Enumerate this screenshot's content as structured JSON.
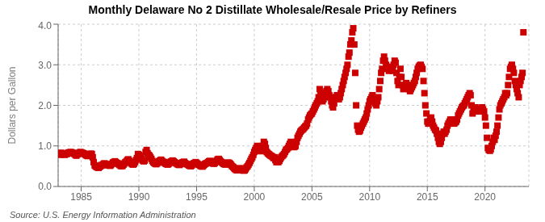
{
  "chart_data": {
    "type": "scatter",
    "title": "Monthly Delaware No 2 Distillate Wholesale/Resale Price by Refiners",
    "y_label": "Dollars per Gallon",
    "annotations": [
      "Source: U.S. Energy Information Administration"
    ],
    "color": "#cc0000",
    "marker": "square",
    "grid": true,
    "xlim": [
      1983.0,
      2023.8
    ],
    "xticks": [
      1985,
      1990,
      1995,
      2000,
      2005,
      2010,
      2015,
      2020
    ],
    "ylim": [
      0.0,
      4.0
    ],
    "yticks": [
      {
        "value": 0.0,
        "label": "0.0"
      },
      {
        "value": 1.0,
        "label": "1.0"
      },
      {
        "value": 2.0,
        "label": "2.0"
      },
      {
        "value": 3.0,
        "label": "3.0"
      },
      {
        "value": 4.0,
        "label": "4.0"
      }
    ],
    "x": [
      1983.0,
      1983.08,
      1983.17,
      1983.25,
      1983.33,
      1983.42,
      1983.5,
      1983.58,
      1983.67,
      1983.75,
      1983.83,
      1983.92,
      1984.0,
      1984.08,
      1984.17,
      1984.25,
      1984.33,
      1984.42,
      1984.5,
      1984.58,
      1984.67,
      1984.75,
      1984.83,
      1984.92,
      1985.0,
      1985.08,
      1985.17,
      1985.25,
      1985.33,
      1985.42,
      1985.5,
      1985.58,
      1985.67,
      1985.75,
      1985.83,
      1985.92,
      1986.0,
      1986.08,
      1986.17,
      1986.25,
      1986.33,
      1986.42,
      1986.5,
      1986.58,
      1986.67,
      1986.75,
      1986.83,
      1986.92,
      1987.0,
      1987.08,
      1987.17,
      1987.25,
      1987.33,
      1987.42,
      1987.5,
      1987.58,
      1987.67,
      1987.75,
      1987.83,
      1987.92,
      1988.0,
      1988.08,
      1988.17,
      1988.25,
      1988.33,
      1988.42,
      1988.5,
      1988.58,
      1988.67,
      1988.75,
      1988.83,
      1988.92,
      1989.0,
      1989.08,
      1989.17,
      1989.25,
      1989.33,
      1989.42,
      1989.5,
      1989.58,
      1989.67,
      1989.75,
      1989.83,
      1989.92,
      1990.0,
      1990.08,
      1990.17,
      1990.25,
      1990.33,
      1990.42,
      1990.5,
      1990.58,
      1990.67,
      1990.75,
      1990.83,
      1990.92,
      1991.0,
      1991.08,
      1991.17,
      1991.25,
      1991.33,
      1991.42,
      1991.5,
      1991.58,
      1991.67,
      1991.75,
      1991.83,
      1991.92,
      1992.0,
      1992.08,
      1992.17,
      1992.25,
      1992.33,
      1992.42,
      1992.5,
      1992.58,
      1992.67,
      1992.75,
      1992.83,
      1992.92,
      1993.0,
      1993.08,
      1993.17,
      1993.25,
      1993.33,
      1993.42,
      1993.5,
      1993.58,
      1993.67,
      1993.75,
      1993.83,
      1993.92,
      1994.0,
      1994.08,
      1994.17,
      1994.25,
      1994.33,
      1994.42,
      1994.5,
      1994.58,
      1994.67,
      1994.75,
      1994.83,
      1994.92,
      1995.0,
      1995.08,
      1995.17,
      1995.25,
      1995.33,
      1995.42,
      1995.5,
      1995.58,
      1995.67,
      1995.75,
      1995.83,
      1995.92,
      1996.0,
      1996.08,
      1996.17,
      1996.25,
      1996.33,
      1996.42,
      1996.5,
      1996.58,
      1996.67,
      1996.75,
      1996.83,
      1996.92,
      1997.0,
      1997.08,
      1997.17,
      1997.25,
      1997.33,
      1997.42,
      1997.5,
      1997.58,
      1997.67,
      1997.75,
      1997.83,
      1997.92,
      1998.0,
      1998.08,
      1998.17,
      1998.25,
      1998.33,
      1998.42,
      1998.5,
      1998.58,
      1998.67,
      1998.75,
      1998.83,
      1998.92,
      1999.0,
      1999.08,
      1999.17,
      1999.25,
      1999.33,
      1999.42,
      1999.5,
      1999.58,
      1999.67,
      1999.75,
      1999.83,
      1999.92,
      2000.0,
      2000.08,
      2000.17,
      2000.25,
      2000.33,
      2000.42,
      2000.5,
      2000.58,
      2000.67,
      2000.75,
      2000.83,
      2000.92,
      2001.0,
      2001.08,
      2001.17,
      2001.25,
      2001.33,
      2001.42,
      2001.5,
      2001.58,
      2001.67,
      2001.75,
      2001.83,
      2001.92,
      2002.0,
      2002.08,
      2002.17,
      2002.25,
      2002.33,
      2002.42,
      2002.5,
      2002.58,
      2002.67,
      2002.75,
      2002.83,
      2002.92,
      2003.0,
      2003.08,
      2003.17,
      2003.25,
      2003.33,
      2003.42,
      2003.5,
      2003.58,
      2003.67,
      2003.75,
      2003.83,
      2003.92,
      2004.0,
      2004.08,
      2004.17,
      2004.25,
      2004.33,
      2004.42,
      2004.5,
      2004.58,
      2004.67,
      2004.75,
      2004.83,
      2004.92,
      2005.0,
      2005.08,
      2005.17,
      2005.25,
      2005.33,
      2005.42,
      2005.5,
      2005.58,
      2005.67,
      2005.75,
      2005.83,
      2005.92,
      2006.0,
      2006.08,
      2006.17,
      2006.25,
      2006.33,
      2006.42,
      2006.5,
      2006.58,
      2006.67,
      2006.75,
      2006.83,
      2006.92,
      2007.0,
      2007.08,
      2007.17,
      2007.25,
      2007.33,
      2007.42,
      2007.5,
      2007.58,
      2007.67,
      2007.75,
      2007.83,
      2007.92,
      2008.0,
      2008.08,
      2008.17,
      2008.25,
      2008.33,
      2008.42,
      2008.5,
      2008.58,
      2008.67,
      2008.75,
      2008.83,
      2008.92,
      2009.0,
      2009.08,
      2009.17,
      2009.25,
      2009.33,
      2009.42,
      2009.5,
      2009.58,
      2009.67,
      2009.75,
      2009.83,
      2009.92,
      2010.0,
      2010.08,
      2010.17,
      2010.25,
      2010.33,
      2010.42,
      2010.5,
      2010.58,
      2010.67,
      2010.75,
      2010.83,
      2010.92,
      2011.0,
      2011.08,
      2011.17,
      2011.25,
      2011.33,
      2011.42,
      2011.5,
      2011.58,
      2011.67,
      2011.75,
      2011.83,
      2011.92,
      2012.0,
      2012.08,
      2012.17,
      2012.25,
      2012.33,
      2012.42,
      2012.5,
      2012.58,
      2012.67,
      2012.75,
      2012.83,
      2012.92,
      2013.0,
      2013.08,
      2013.17,
      2013.25,
      2013.33,
      2013.42,
      2013.5,
      2013.58,
      2013.67,
      2013.75,
      2013.83,
      2013.92,
      2014.0,
      2014.08,
      2014.17,
      2014.25,
      2014.33,
      2014.42,
      2014.5,
      2014.58,
      2014.67,
      2014.75,
      2014.83,
      2014.92,
      2015.0,
      2015.08,
      2015.17,
      2015.25,
      2015.33,
      2015.42,
      2015.5,
      2015.58,
      2015.67,
      2015.75,
      2015.83,
      2015.92,
      2016.0,
      2016.08,
      2016.17,
      2016.25,
      2016.33,
      2016.42,
      2016.5,
      2016.58,
      2016.67,
      2016.75,
      2016.83,
      2016.92,
      2017.0,
      2017.08,
      2017.17,
      2017.25,
      2017.33,
      2017.42,
      2017.5,
      2017.58,
      2017.67,
      2017.75,
      2017.83,
      2017.92,
      2018.0,
      2018.08,
      2018.17,
      2018.25,
      2018.33,
      2018.42,
      2018.5,
      2018.58,
      2018.67,
      2018.75,
      2018.83,
      2018.92,
      2019.0,
      2019.08,
      2019.17,
      2019.25,
      2019.33,
      2019.42,
      2019.5,
      2019.58,
      2019.67,
      2019.75,
      2019.83,
      2019.92,
      2020.0,
      2020.08,
      2020.17,
      2020.25,
      2020.33,
      2020.42,
      2020.5,
      2020.58,
      2020.67,
      2020.75,
      2020.83,
      2020.92,
      2021.0,
      2021.08,
      2021.17,
      2021.25,
      2021.33,
      2021.42,
      2021.5,
      2021.58,
      2021.67,
      2021.75,
      2021.83,
      2021.92,
      2022.0,
      2022.08,
      2022.17,
      2022.25,
      2022.33,
      2022.42,
      2022.5,
      2022.58,
      2022.67,
      2022.75,
      2022.83,
      2022.92,
      2023.0,
      2023.08,
      2023.17,
      2023.25,
      2023.33
    ],
    "values": [
      0.82,
      0.8,
      0.78,
      0.83,
      0.82,
      0.8,
      0.79,
      0.78,
      0.81,
      0.8,
      0.82,
      0.84,
      0.83,
      0.85,
      0.84,
      0.83,
      0.82,
      0.8,
      0.78,
      0.76,
      0.79,
      0.81,
      0.83,
      0.85,
      0.84,
      0.83,
      0.82,
      0.81,
      0.79,
      0.77,
      0.76,
      0.75,
      0.77,
      0.79,
      0.81,
      0.8,
      0.72,
      0.6,
      0.52,
      0.5,
      0.48,
      0.47,
      0.46,
      0.48,
      0.5,
      0.53,
      0.52,
      0.55,
      0.57,
      0.56,
      0.55,
      0.54,
      0.53,
      0.52,
      0.51,
      0.53,
      0.56,
      0.59,
      0.6,
      0.62,
      0.6,
      0.58,
      0.57,
      0.55,
      0.53,
      0.51,
      0.5,
      0.51,
      0.54,
      0.57,
      0.6,
      0.62,
      0.65,
      0.67,
      0.63,
      0.6,
      0.57,
      0.55,
      0.54,
      0.56,
      0.6,
      0.65,
      0.7,
      0.8,
      0.78,
      0.75,
      0.73,
      0.68,
      0.64,
      0.62,
      0.64,
      0.85,
      0.9,
      0.82,
      0.78,
      0.76,
      0.72,
      0.68,
      0.63,
      0.6,
      0.58,
      0.56,
      0.55,
      0.57,
      0.59,
      0.62,
      0.64,
      0.66,
      0.63,
      0.61,
      0.6,
      0.58,
      0.56,
      0.55,
      0.54,
      0.56,
      0.59,
      0.61,
      0.62,
      0.64,
      0.62,
      0.6,
      0.58,
      0.57,
      0.55,
      0.54,
      0.53,
      0.55,
      0.57,
      0.59,
      0.6,
      0.61,
      0.58,
      0.56,
      0.55,
      0.54,
      0.52,
      0.51,
      0.5,
      0.52,
      0.55,
      0.57,
      0.58,
      0.6,
      0.58,
      0.56,
      0.54,
      0.53,
      0.51,
      0.5,
      0.49,
      0.51,
      0.54,
      0.56,
      0.57,
      0.58,
      0.6,
      0.62,
      0.63,
      0.61,
      0.59,
      0.57,
      0.56,
      0.58,
      0.61,
      0.64,
      0.67,
      0.68,
      0.65,
      0.62,
      0.6,
      0.58,
      0.56,
      0.55,
      0.54,
      0.56,
      0.58,
      0.59,
      0.58,
      0.56,
      0.53,
      0.5,
      0.48,
      0.45,
      0.43,
      0.41,
      0.4,
      0.41,
      0.43,
      0.45,
      0.44,
      0.42,
      0.4,
      0.39,
      0.4,
      0.43,
      0.47,
      0.5,
      0.54,
      0.58,
      0.63,
      0.68,
      0.72,
      0.78,
      0.85,
      0.9,
      0.95,
      1.0,
      0.95,
      0.9,
      0.88,
      0.87,
      0.92,
      1.0,
      1.1,
      1.05,
      0.95,
      0.85,
      0.82,
      0.8,
      0.78,
      0.76,
      0.75,
      0.73,
      0.7,
      0.72,
      0.65,
      0.6,
      0.62,
      0.6,
      0.63,
      0.68,
      0.72,
      0.75,
      0.77,
      0.8,
      0.85,
      0.9,
      0.92,
      0.95,
      1.0,
      1.05,
      1.1,
      1.05,
      1.0,
      0.97,
      0.98,
      1.0,
      1.1,
      1.2,
      1.25,
      1.3,
      1.35,
      1.38,
      1.4,
      1.42,
      1.45,
      1.48,
      1.5,
      1.55,
      1.65,
      1.7,
      1.75,
      1.78,
      1.8,
      1.85,
      1.9,
      1.95,
      2.0,
      2.05,
      2.1,
      2.2,
      2.4,
      2.3,
      2.2,
      2.1,
      2.15,
      2.2,
      2.3,
      2.35,
      2.4,
      2.35,
      2.25,
      2.2,
      2.1,
      2.0,
      1.95,
      2.05,
      2.15,
      2.2,
      2.25,
      2.2,
      2.15,
      2.2,
      2.3,
      2.4,
      2.5,
      2.6,
      2.7,
      2.8,
      2.9,
      3.0,
      3.2,
      3.3,
      3.5,
      3.6,
      3.8,
      3.9,
      3.5,
      2.8,
      2.0,
      1.5,
      1.4,
      1.35,
      1.38,
      1.45,
      1.5,
      1.55,
      1.6,
      1.65,
      1.7,
      1.8,
      1.9,
      2.0,
      2.1,
      2.15,
      2.2,
      2.25,
      2.15,
      2.1,
      2.05,
      2.0,
      2.1,
      2.2,
      2.4,
      2.6,
      2.8,
      2.9,
      3.1,
      3.2,
      3.1,
      3.0,
      2.95,
      2.9,
      2.85,
      2.9,
      2.95,
      2.9,
      2.85,
      3.0,
      3.1,
      3.05,
      2.8,
      2.6,
      2.5,
      2.7,
      2.9,
      2.7,
      2.5,
      2.4,
      2.45,
      2.5,
      2.55,
      2.5,
      2.45,
      2.4,
      2.35,
      2.4,
      2.45,
      2.5,
      2.55,
      2.6,
      2.7,
      2.8,
      2.9,
      2.95,
      2.98,
      3.0,
      2.95,
      2.9,
      2.6,
      2.3,
      2.0,
      1.8,
      1.6,
      1.55,
      1.6,
      1.65,
      1.7,
      1.6,
      1.5,
      1.45,
      1.4,
      1.38,
      1.3,
      1.2,
      1.1,
      1.05,
      1.1,
      1.2,
      1.3,
      1.35,
      1.3,
      1.35,
      1.4,
      1.5,
      1.55,
      1.6,
      1.65,
      1.6,
      1.65,
      1.6,
      1.55,
      1.58,
      1.6,
      1.65,
      1.75,
      1.8,
      1.85,
      1.9,
      1.95,
      1.98,
      2.0,
      2.05,
      2.1,
      2.15,
      2.2,
      2.25,
      2.3,
      2.25,
      2.0,
      1.8,
      1.85,
      1.9,
      1.95,
      1.9,
      1.85,
      1.9,
      1.88,
      1.85,
      1.9,
      1.95,
      1.9,
      1.85,
      1.7,
      1.5,
      1.2,
      0.95,
      0.9,
      0.88,
      0.92,
      1.0,
      1.1,
      1.2,
      1.15,
      1.25,
      1.35,
      1.5,
      1.7,
      1.9,
      2.0,
      2.05,
      2.1,
      2.15,
      2.2,
      2.3,
      2.25,
      2.3,
      2.5,
      2.7,
      2.9,
      2.95,
      3.0,
      2.9,
      2.8,
      2.6,
      2.5,
      2.4,
      2.3,
      2.2,
      2.5,
      2.6,
      2.7,
      2.8,
      3.8
    ]
  }
}
